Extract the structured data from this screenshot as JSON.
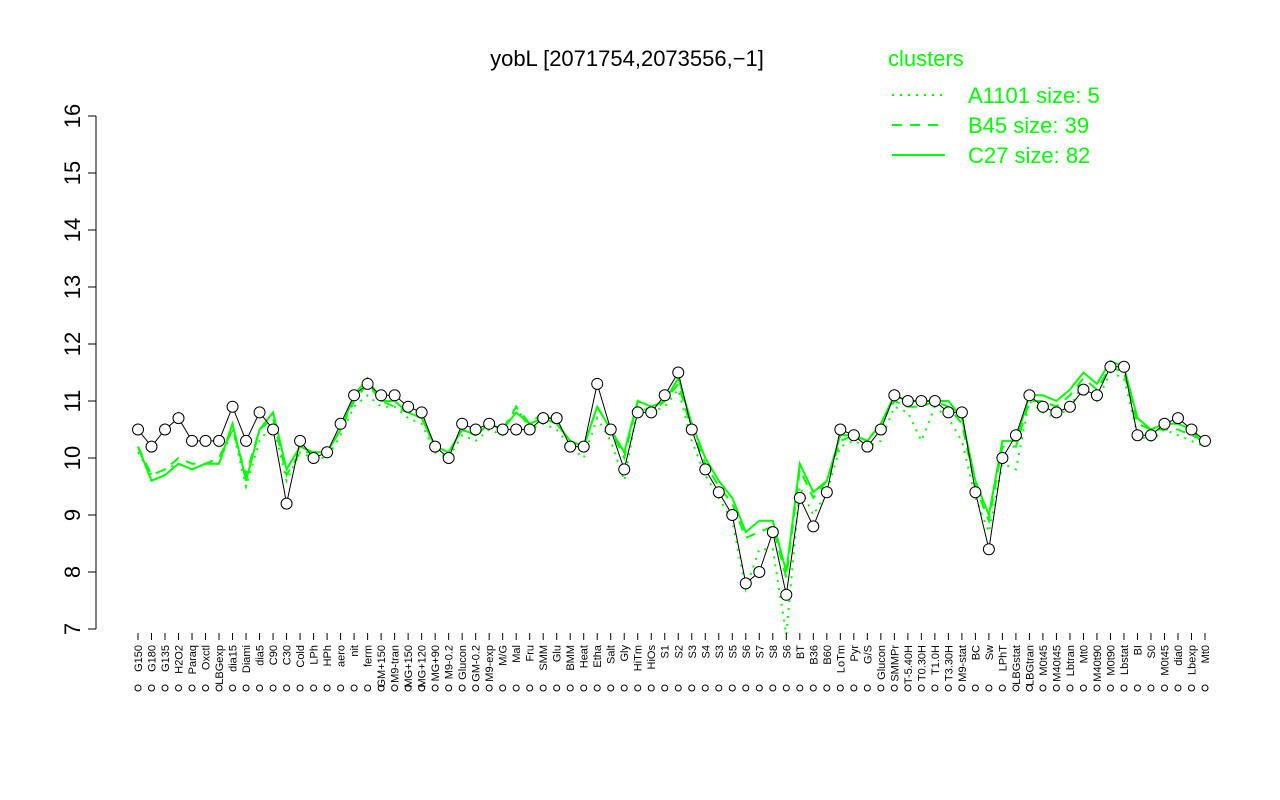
{
  "chart_data": {
    "type": "line",
    "title": "yobL [2071754,2073556,−1]",
    "legend_title": "clusters",
    "categories": [
      "G150",
      "G180",
      "G135",
      "H2O2",
      "Paraq",
      "Oxctl",
      "LBGexp",
      "dia15",
      "Diami",
      "dia5",
      "C90",
      "C30",
      "Cold",
      "LPh",
      "HPh",
      "aero",
      "nit",
      "ferm",
      "GM+150",
      "M9-tran",
      "MG+150",
      "MG+120",
      "MG+90",
      "M9-0.2",
      "Glucon",
      "GM-0.2",
      "M9-exp",
      "M/G",
      "Mal",
      "Fru",
      "SMM",
      "Glu",
      "BMM",
      "Heat",
      "Etha",
      "Salt",
      "Gly",
      "HiTm",
      "HiOs",
      "S1",
      "S2",
      "S3",
      "S4",
      "S3",
      "S5",
      "S6",
      "S7",
      "S8",
      "S6",
      "BT",
      "B36",
      "B60",
      "LoTm",
      "Pyr",
      "G/S",
      "Glucon",
      "SMMPr",
      "T-5.40H",
      "T0.30H",
      "T1.0H",
      "T3.30H",
      "M9-stat",
      "BC",
      "Sw",
      "LPhT",
      "LBGstat",
      "LBGtran",
      "M0t45",
      "M40t45",
      "Lbtran",
      "Mt0",
      "M40t90",
      "M0t90",
      "Lbstat",
      "BI",
      "S0",
      "M0t45",
      "dia0",
      "Lbexp",
      "Mt0"
    ],
    "values": [
      10.5,
      10.2,
      10.5,
      10.7,
      10.3,
      10.3,
      10.3,
      10.9,
      10.3,
      10.8,
      10.5,
      9.2,
      10.3,
      10.0,
      10.1,
      10.6,
      11.1,
      11.3,
      11.1,
      11.1,
      10.9,
      10.8,
      10.2,
      10.0,
      10.6,
      10.5,
      10.6,
      10.5,
      10.5,
      10.5,
      10.7,
      10.7,
      10.2,
      10.2,
      11.3,
      10.5,
      9.8,
      10.8,
      10.8,
      11.1,
      11.5,
      10.5,
      9.8,
      9.4,
      9.0,
      7.8,
      8.0,
      8.7,
      7.6,
      9.3,
      8.8,
      9.4,
      10.5,
      10.4,
      10.2,
      10.5,
      11.1,
      11.0,
      11.0,
      11.0,
      10.8,
      10.8,
      9.4,
      8.4,
      10.0,
      10.4,
      11.1,
      10.9,
      10.8,
      10.9,
      11.2,
      11.1,
      11.6,
      11.6,
      10.4,
      10.4,
      10.6,
      10.7,
      10.5,
      10.3
    ],
    "point_color": "#ffffff",
    "series": [
      {
        "name": "A1101 size: 5",
        "color": "#00ff00",
        "dash": "dotted",
        "values": [
          10.1,
          9.7,
          9.8,
          9.9,
          9.8,
          9.9,
          9.9,
          10.5,
          9.5,
          10.3,
          10.6,
          9.6,
          10.1,
          10.0,
          10.0,
          10.4,
          10.9,
          11.1,
          10.9,
          10.9,
          10.7,
          10.6,
          10.1,
          10.0,
          10.4,
          10.3,
          10.5,
          10.4,
          10.9,
          10.5,
          10.6,
          10.5,
          10.2,
          10.0,
          10.7,
          10.3,
          9.6,
          10.9,
          10.8,
          10.9,
          11.2,
          10.3,
          9.7,
          9.3,
          8.9,
          7.7,
          8.4,
          8.4,
          6.9,
          9.5,
          9.0,
          9.4,
          10.2,
          10.3,
          10.2,
          10.3,
          10.9,
          10.8,
          10.3,
          10.9,
          10.7,
          10.3,
          9.3,
          8.7,
          9.9,
          9.8,
          11.0,
          10.8,
          10.7,
          10.9,
          11.3,
          11.0,
          11.5,
          11.4,
          10.4,
          10.3,
          10.5,
          10.4,
          10.3,
          10.2
        ]
      },
      {
        "name": "B45 size: 39",
        "color": "#00ff00",
        "dash": "dashed",
        "values": [
          10.2,
          9.7,
          9.8,
          10.0,
          9.9,
          9.9,
          10.0,
          10.5,
          9.7,
          10.5,
          10.7,
          9.7,
          10.1,
          10.1,
          10.1,
          10.5,
          11.0,
          11.3,
          11.0,
          10.9,
          10.8,
          10.7,
          10.2,
          10.1,
          10.5,
          10.4,
          10.6,
          10.5,
          10.9,
          10.6,
          10.8,
          10.6,
          10.3,
          10.2,
          10.9,
          10.5,
          10.0,
          11.0,
          10.8,
          11.0,
          11.3,
          10.5,
          9.9,
          9.5,
          9.2,
          8.6,
          8.7,
          8.8,
          7.9,
          9.8,
          9.3,
          9.6,
          10.3,
          10.4,
          10.3,
          10.6,
          11.0,
          10.9,
          10.9,
          11.0,
          10.9,
          10.6,
          9.5,
          8.9,
          10.2,
          10.2,
          11.0,
          11.0,
          10.9,
          11.1,
          11.4,
          11.2,
          11.6,
          11.5,
          10.6,
          10.5,
          10.5,
          10.5,
          10.4,
          10.3
        ]
      },
      {
        "name": "C27 size: 82",
        "color": "#00ff00",
        "dash": "solid",
        "values": [
          10.2,
          9.6,
          9.7,
          9.9,
          9.8,
          9.9,
          9.9,
          10.6,
          9.6,
          10.5,
          10.8,
          9.8,
          10.2,
          10.1,
          10.1,
          10.5,
          11.1,
          11.4,
          11.0,
          11.0,
          10.8,
          10.7,
          10.2,
          10.1,
          10.5,
          10.4,
          10.6,
          10.5,
          10.8,
          10.6,
          10.7,
          10.6,
          10.3,
          10.2,
          10.9,
          10.5,
          10.1,
          11.0,
          10.9,
          11.0,
          11.4,
          10.6,
          10.0,
          9.6,
          9.3,
          8.7,
          8.9,
          8.9,
          8.0,
          9.9,
          9.4,
          9.6,
          10.4,
          10.4,
          10.3,
          10.6,
          11.1,
          11.0,
          11.0,
          11.0,
          11.0,
          10.7,
          9.6,
          9.0,
          10.3,
          10.3,
          11.1,
          11.1,
          11.0,
          11.2,
          11.5,
          11.3,
          11.7,
          11.6,
          10.7,
          10.5,
          10.6,
          10.6,
          10.5,
          10.2
        ]
      }
    ],
    "ylim": [
      7,
      16
    ],
    "yticks": [
      7,
      8,
      9,
      10,
      11,
      12,
      13,
      14,
      15,
      16
    ]
  }
}
